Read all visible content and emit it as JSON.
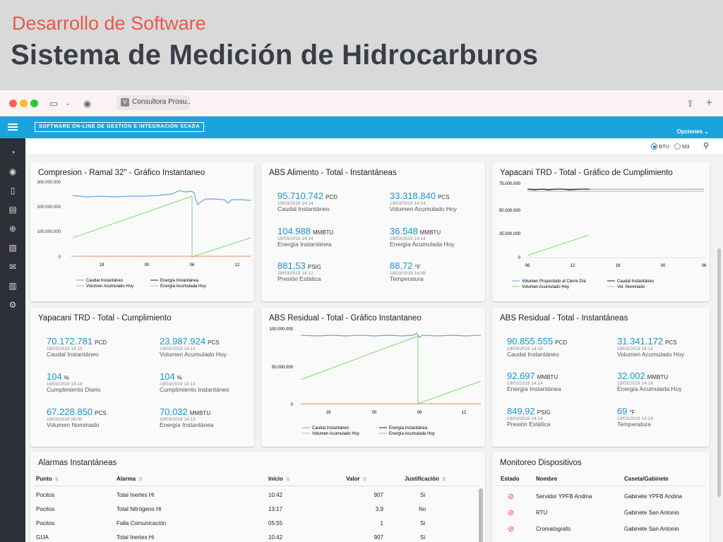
{
  "slide": {
    "subtitle": "Desarrollo de Software",
    "title": "Sistema de Medición de Hidrocarburos"
  },
  "browser": {
    "tab_title": "Consultora Prosu...",
    "tab_favicon": "V"
  },
  "app": {
    "brand": "SOFTWARE ON-LINE DE GESTIÓN E INTEGRACIÓN SCADA",
    "options_label": "Opciones",
    "units": {
      "btu": "BTU",
      "m3": "M3",
      "selected": "BTU"
    }
  },
  "colors": {
    "appbar": "#1ba3de",
    "value": "#1a93d4",
    "series_blue": "#6aa5e0",
    "series_green": "#7cdc6f",
    "series_black": "#222222",
    "series_orange": "#f0a070",
    "alarm_red": "#e84b3a"
  },
  "cards": {
    "comp": {
      "title": "Compresion - Ramal 32\" - Gráfico Instantaneo",
      "chart_data": {
        "type": "line",
        "yticks": [
          "300.000.000",
          "200.000.000",
          "100.000.000",
          "0"
        ],
        "ylim": [
          0,
          300000000
        ],
        "xticks": [
          "18",
          "00",
          "06",
          "12"
        ],
        "legend": [
          "Caudal Instantáneo",
          "Energía Instantánea",
          "Volumen Acumulado Hoy",
          "Energía Acumulada Hoy"
        ]
      }
    },
    "abs_alim": {
      "title": "ABS Alimento - Total - Instantáneas",
      "metrics": [
        {
          "value": "95.710.742",
          "unit": "PCD",
          "date": "19/03/2019 14:14",
          "label": "Caudal Instantáneo"
        },
        {
          "value": "33.318.840",
          "unit": "PCS",
          "date": "19/03/2019 14:14",
          "label": "Volumen Acumulado Hoy"
        },
        {
          "value": "104.988",
          "unit": "MMBTU",
          "date": "19/03/2019 14:14",
          "label": "Energía Instantánea"
        },
        {
          "value": "36.548",
          "unit": "MMBTU",
          "date": "19/03/2019 14:14",
          "label": "Energía Acumulada Hoy"
        },
        {
          "value": "881,53",
          "unit": "PSIG",
          "date": "19/03/2019 14:12",
          "label": "Presión Estática"
        },
        {
          "value": "88,72",
          "unit": "°F",
          "date": "19/03/2019 14:09",
          "label": "Temperatura"
        }
      ]
    },
    "yap_graf": {
      "title": "Yapacani TRD - Total - Gráfico de Cumplimiento",
      "chart_data": {
        "type": "line",
        "yticks": [
          "75.000.000",
          "50.000.000",
          "25.000.000",
          "0"
        ],
        "ylim": [
          0,
          75000000
        ],
        "xticks": [
          "06",
          "12",
          "18",
          "00",
          "06"
        ],
        "legend": [
          "Volumen Proyectado al Cierre Día",
          "Caudal Instantáneo",
          "Volumen Acumulado Hoy",
          "Vol. Nominado"
        ]
      }
    },
    "yap_cump": {
      "title": "Yapacani TRD - Total - Cumplimiento",
      "metrics": [
        {
          "value": "70.172.781",
          "unit": "PCD",
          "date": "19/03/2019 14:13",
          "label": "Caudal Instantáneo"
        },
        {
          "value": "23.987.924",
          "unit": "PCS",
          "date": "19/03/2019 14:13",
          "label": "Volumen Acumulado Hoy"
        },
        {
          "value": "104",
          "unit": "%",
          "date": "19/03/2019 14:18",
          "label": "Cumplimiento Diario"
        },
        {
          "value": "104",
          "unit": "%",
          "date": "19/03/2019 14:13",
          "label": "Cumplimiento Instantáneo"
        },
        {
          "value": "67.228.850",
          "unit": "PCS",
          "date": "19/03/2019 06:00",
          "label": "Volumen Nominado"
        },
        {
          "value": "70.032",
          "unit": "MMBTU",
          "date": "19/03/2019 14:13",
          "label": "Energía Instantánea"
        }
      ]
    },
    "abs_res": {
      "title": "ABS Residual - Total - Gráfico Instantaneo",
      "chart_data": {
        "type": "line",
        "yticks": [
          "100.000.000",
          "50.000.000",
          "0"
        ],
        "ylim": [
          0,
          100000000
        ],
        "xticks": [
          "18",
          "00",
          "06",
          "12"
        ],
        "legend": [
          "Caudal Instantáneo",
          "Energía Instantánea",
          "Volumen Acumulado Hoy",
          "Energía Acumulada Hoy"
        ]
      }
    },
    "abs_res_inst": {
      "title": "ABS Residual - Total - Instantáneas",
      "metrics": [
        {
          "value": "90.855.555",
          "unit": "PCD",
          "date": "19/03/2019 14:14",
          "label": "Caudal Instantáneo"
        },
        {
          "value": "31.341.172",
          "unit": "PCS",
          "date": "19/03/2019 14:14",
          "label": "Volumen Acumulado Hoy"
        },
        {
          "value": "92.697",
          "unit": "MMBTU",
          "date": "19/03/2019 14:14",
          "label": "Energía Instantánea"
        },
        {
          "value": "32.002",
          "unit": "MMBTU",
          "date": "19/03/2019 14:14",
          "label": "Energía Acumulada Hoy"
        },
        {
          "value": "849,92",
          "unit": "PSIG",
          "date": "19/03/2019 14:14",
          "label": "Presión Estática"
        },
        {
          "value": "69",
          "unit": "°F",
          "date": "19/03/2019 14:14",
          "label": "Temperatura"
        }
      ]
    },
    "alarmas": {
      "title": "Alarmas Instantáneas",
      "headers": [
        "Punto",
        "Alarma",
        "Inicio",
        "Valor",
        "Justificación"
      ],
      "rows": [
        [
          "Pocitos",
          "Total Inertes Hi",
          "10:42",
          "907",
          "Si"
        ],
        [
          "Pocitos",
          "Total Nitrógeno Hi",
          "13:17",
          "3,9",
          "No"
        ],
        [
          "Pocitos",
          "Falla Comunicación",
          "05:55",
          "1",
          "Si"
        ],
        [
          "GIJA",
          "Total Inertes Hi",
          "10:42",
          "907",
          "Si"
        ]
      ]
    },
    "monitoreo": {
      "title": "Monitoreo Dispositivos",
      "headers": [
        "Estado",
        "Nombre",
        "Caseta/Gabinete"
      ],
      "rows": [
        [
          "Servidor YPFB Andina",
          "Gabinete YPFB Andina"
        ],
        [
          "RTU",
          "Gabinete San Antonio"
        ],
        [
          "Cromatografo",
          "Gabinete San Antonio"
        ]
      ]
    }
  },
  "sidebar_icons": [
    "dashboard-icon",
    "target-icon",
    "book-icon",
    "document-icon",
    "location-icon",
    "image-icon",
    "mail-icon",
    "bar-chart-icon",
    "gear-icon"
  ]
}
